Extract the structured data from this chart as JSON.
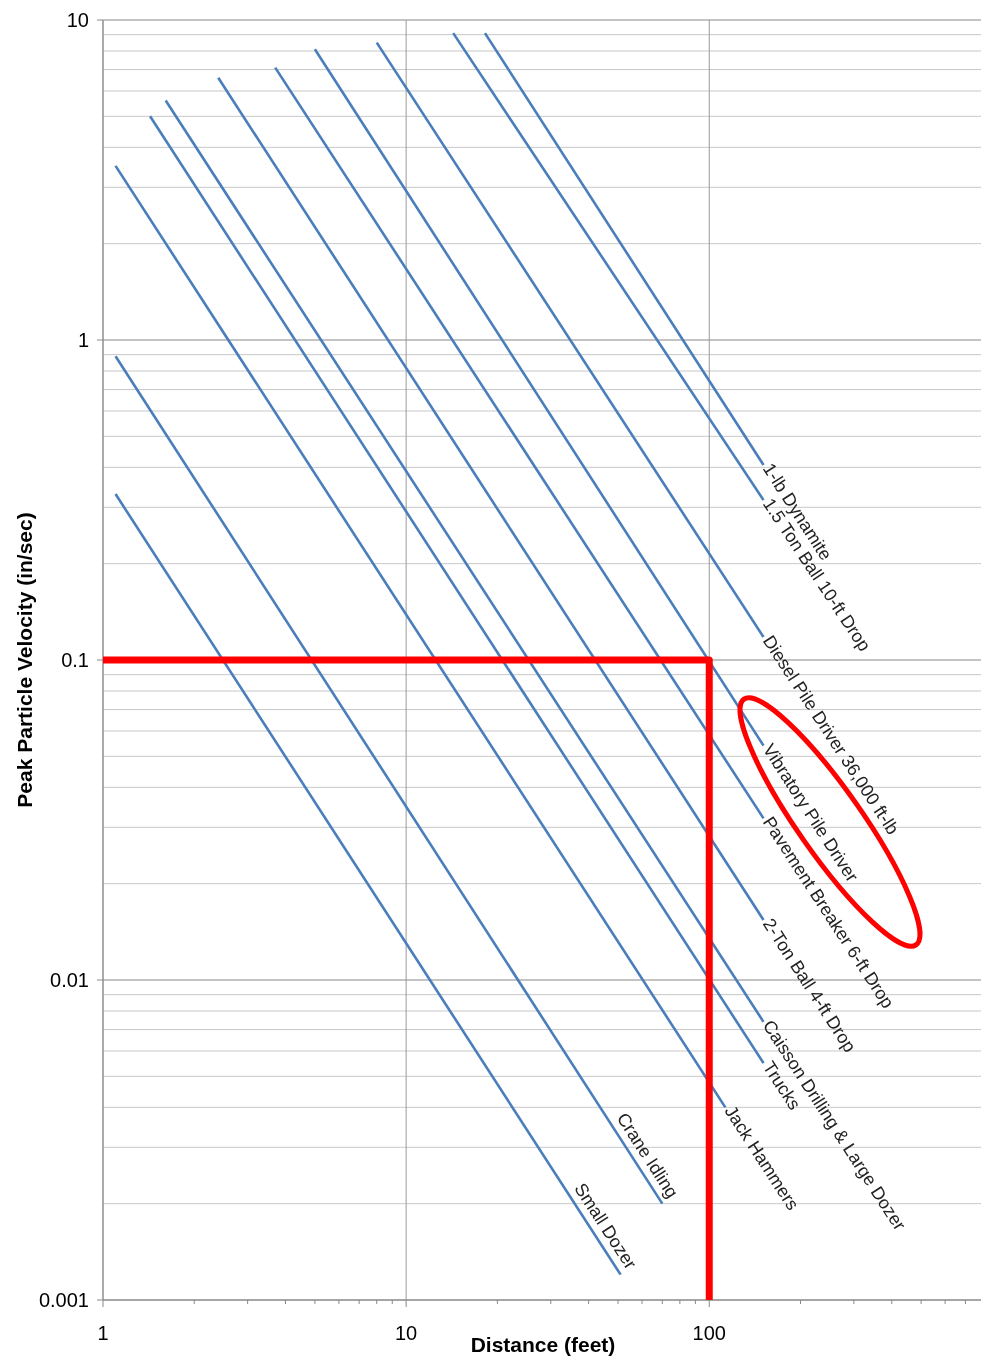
{
  "chart_data": {
    "type": "line",
    "xlabel": "Distance (feet)",
    "ylabel": "Peak Particle Velocity (in/sec)",
    "log": "xy",
    "xlim": [
      1,
      800
    ],
    "ylim": [
      0.001,
      10
    ],
    "xticks": [
      1,
      10,
      100
    ],
    "yticks": [
      0.001,
      0.01,
      0.1,
      1,
      10
    ],
    "grid": true,
    "legend": false,
    "marker": "none",
    "line_style": "solid",
    "series": [
      {
        "name": "1-lb Dynamite",
        "color": "#4a7ebb",
        "x": [
          18.2,
          151
        ],
        "values": [
          9.1,
          0.407
        ]
      },
      {
        "name": "1.5 Ton  Ball 10-ft Drop",
        "color": "#4a7ebb",
        "x": [
          14.3,
          151
        ],
        "values": [
          9.1,
          0.316
        ]
      },
      {
        "name": "Diesel Pile Driver 36,000 ft-lb",
        "color": "#4a7ebb",
        "x": [
          8.0,
          151
        ],
        "values": [
          8.5,
          0.118
        ]
      },
      {
        "name": "Vibratory Pile Driver",
        "color": "#4a7ebb",
        "x": [
          5.0,
          151
        ],
        "values": [
          8.1,
          0.054
        ]
      },
      {
        "name": "Pavement Breaker 6-ft Drop",
        "color": "#4a7ebb",
        "x": [
          3.7,
          151
        ],
        "values": [
          7.1,
          0.032
        ]
      },
      {
        "name": "2-Ton Ball 4-ft Drop",
        "color": "#4a7ebb",
        "x": [
          2.4,
          151
        ],
        "values": [
          6.6,
          0.0154
        ]
      },
      {
        "name": "Caisson Drilling & Large Dozer",
        "color": "#4a7ebb",
        "x": [
          1.61,
          151
        ],
        "values": [
          5.6,
          0.0074
        ]
      },
      {
        "name": "Trucks",
        "color": "#4a7ebb",
        "x": [
          1.43,
          151
        ],
        "values": [
          5.0,
          0.0055
        ]
      },
      {
        "name": "Jack Hammers",
        "color": "#4a7ebb",
        "x": [
          1.1,
          113
        ],
        "values": [
          3.5,
          0.004
        ]
      },
      {
        "name": "Crane Idling",
        "color": "#4a7ebb",
        "x": [
          1.1,
          70
        ],
        "values": [
          0.89,
          0.002
        ]
      },
      {
        "name": "Small Dozer",
        "color": "#4a7ebb",
        "x": [
          1.1,
          51
        ],
        "values": [
          0.33,
          0.0012
        ]
      },
      {
        "color": "#ff0000",
        "x": [
          1,
          100,
          100
        ],
        "values": [
          0.1,
          0.1,
          0.001
        ]
      }
    ]
  }
}
